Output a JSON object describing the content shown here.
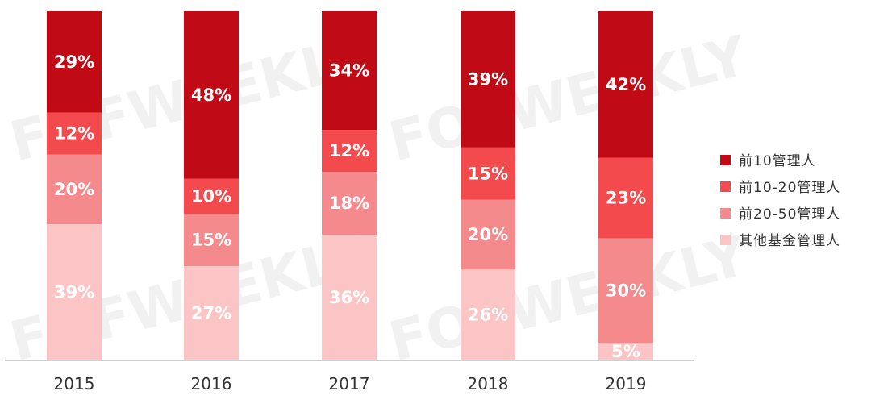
{
  "watermark": "FOFWEEKLY",
  "chart_data": {
    "type": "bar",
    "stacked": true,
    "normalized": true,
    "categories": [
      "2015",
      "2016",
      "2017",
      "2018",
      "2019"
    ],
    "series": [
      {
        "name": "前10管理人",
        "color": "#c00a16",
        "values": [
          29,
          48,
          34,
          39,
          42
        ],
        "labels": [
          "29%",
          "48%",
          "34%",
          "39%",
          "42%"
        ]
      },
      {
        "name": "前10-20管理人",
        "color": "#f24a4d",
        "values": [
          12,
          10,
          12,
          15,
          23
        ],
        "labels": [
          "12%",
          "10%",
          "12%",
          "15%",
          "23%"
        ]
      },
      {
        "name": "前20-50管理人",
        "color": "#f58a8c",
        "values": [
          20,
          15,
          18,
          20,
          30
        ],
        "labels": [
          "20%",
          "15%",
          "18%",
          "20%",
          "30%"
        ]
      },
      {
        "name": "其他基金管理人",
        "color": "#fbc5c6",
        "values": [
          39,
          27,
          36,
          26,
          5
        ],
        "labels": [
          "39%",
          "27%",
          "36%",
          "26%",
          "5%"
        ]
      }
    ],
    "ylim": [
      0,
      100
    ],
    "legend_position": "right",
    "grid": false
  }
}
